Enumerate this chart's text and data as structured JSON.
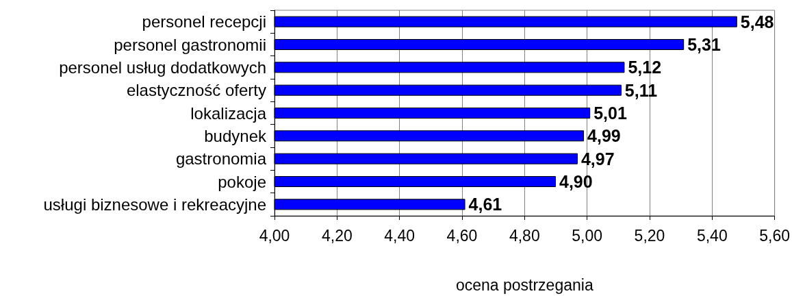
{
  "chart_data": {
    "type": "bar",
    "orientation": "horizontal",
    "xlabel": "ocena postrzegania",
    "categories": [
      "personel recepcji",
      "personel gastronomii",
      "personel usług dodatkowych",
      "elastyczność oferty",
      "lokalizacja",
      "budynek",
      "gastronomia",
      "pokoje",
      "usługi biznesowe i rekreacyjne"
    ],
    "values": [
      5.48,
      5.31,
      5.12,
      5.11,
      5.01,
      4.99,
      4.97,
      4.9,
      4.61
    ],
    "value_labels": [
      "5,48",
      "5,31",
      "5,12",
      "5,11",
      "5,01",
      "4,99",
      "4,97",
      "4,90",
      "4,61"
    ],
    "color": "#0000ff",
    "xlim": [
      4,
      5.6
    ],
    "xticks": [
      {
        "value": 4,
        "label": "4,00"
      },
      {
        "value": 4.2,
        "label": "4,20"
      },
      {
        "value": 4.4,
        "label": "4,40"
      },
      {
        "value": 4.6,
        "label": "4,60"
      },
      {
        "value": 4.8,
        "label": "4,80"
      },
      {
        "value": 5,
        "label": "5,00"
      },
      {
        "value": 5.2,
        "label": "5,20"
      },
      {
        "value": 5.4,
        "label": "5,40"
      },
      {
        "value": 5.6,
        "label": "5,60"
      }
    ],
    "grid": "x"
  }
}
